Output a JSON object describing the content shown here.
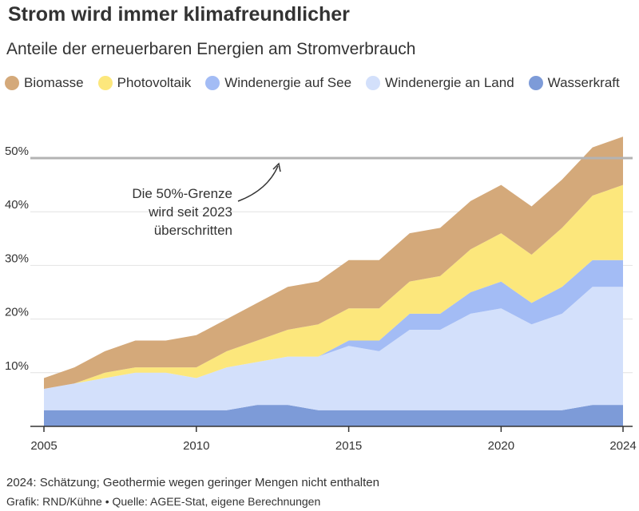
{
  "title": "Strom wird immer klimafreundlicher",
  "subtitle": "Anteile der erneuerbaren Energien am Stromverbrauch",
  "note": "2024: Schätzung; Geothermie wegen geringer Mengen nicht enthalten",
  "credit": "Grafik: RND/Kühne • Quelle: AGEE-Stat, eigene Berechnungen",
  "legend": [
    {
      "label": "Biomasse",
      "color": "#d4a97a"
    },
    {
      "label": "Photovoltaik",
      "color": "#fce77c"
    },
    {
      "label": "Windenergie auf See",
      "color": "#a3bcf5"
    },
    {
      "label": "Windenergie an Land",
      "color": "#d3e0fb"
    },
    {
      "label": "Wasserkraft",
      "color": "#7d9bd8"
    }
  ],
  "chart_data": {
    "type": "area",
    "stacked": true,
    "x": [
      2005,
      2006,
      2007,
      2008,
      2009,
      2010,
      2011,
      2012,
      2013,
      2014,
      2015,
      2016,
      2017,
      2018,
      2019,
      2020,
      2021,
      2022,
      2023,
      2024
    ],
    "x_ticks": [
      {
        "value": 2005,
        "label": "2005"
      },
      {
        "value": 2010,
        "label": "2010"
      },
      {
        "value": 2015,
        "label": "2015"
      },
      {
        "value": 2020,
        "label": "2020"
      },
      {
        "value": 2024,
        "label": "2024"
      }
    ],
    "y_ticks": [
      {
        "value": 10,
        "label": "10%"
      },
      {
        "value": 20,
        "label": "20%"
      },
      {
        "value": 30,
        "label": "30%"
      },
      {
        "value": 40,
        "label": "40%"
      },
      {
        "value": 50,
        "label": "50%"
      }
    ],
    "ylim": [
      0,
      55
    ],
    "grid": true,
    "series": [
      {
        "name": "Wasserkraft",
        "color": "#7d9bd8",
        "values": [
          3,
          3,
          3,
          3,
          3,
          3,
          3,
          4,
          4,
          3,
          3,
          3,
          3,
          3,
          3,
          3,
          3,
          3,
          4,
          4
        ]
      },
      {
        "name": "Windenergie an Land",
        "color": "#d3e0fb",
        "values": [
          4,
          5,
          6,
          7,
          7,
          6,
          8,
          8,
          9,
          10,
          12,
          11,
          15,
          15,
          18,
          19,
          16,
          18,
          22,
          22
        ]
      },
      {
        "name": "Windenergie auf See",
        "color": "#a3bcf5",
        "values": [
          0,
          0,
          0,
          0,
          0,
          0,
          0,
          0,
          0,
          0,
          1,
          2,
          3,
          3,
          4,
          5,
          4,
          5,
          5,
          5
        ]
      },
      {
        "name": "Photovoltaik",
        "color": "#fce77c",
        "values": [
          0,
          0,
          1,
          1,
          1,
          2,
          3,
          4,
          5,
          6,
          6,
          6,
          6,
          7,
          8,
          9,
          9,
          11,
          12,
          14
        ]
      },
      {
        "name": "Biomasse",
        "color": "#d4a97a",
        "values": [
          2,
          3,
          4,
          5,
          5,
          6,
          6,
          7,
          8,
          8,
          9,
          9,
          9,
          9,
          9,
          9,
          9,
          9,
          9,
          9
        ]
      }
    ],
    "reference_line": {
      "value": 50,
      "color": "#b3b3b3"
    },
    "annotation": {
      "lines": [
        "Die 50%-Grenze",
        "wird seit 2023",
        "überschritten"
      ]
    }
  }
}
